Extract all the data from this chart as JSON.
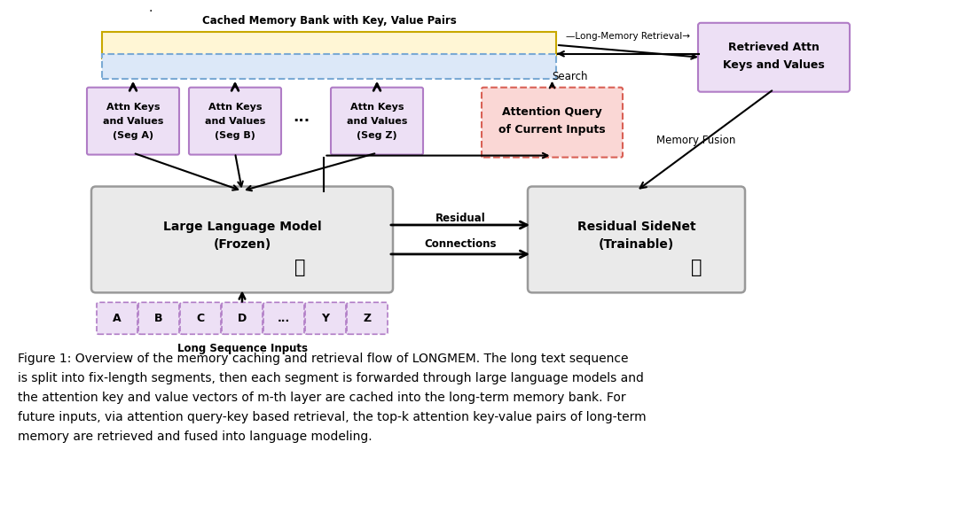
{
  "fig_width": 10.88,
  "fig_height": 5.78,
  "bg_color": "#ffffff",
  "mem_bank_label": "Cached Memory Bank with Key, Value Pairs",
  "attn_box_labels": [
    [
      "Attn Keys",
      "and Values",
      "(Seg A)"
    ],
    [
      "Attn Keys",
      "and Values",
      "(Seg B)"
    ],
    [
      "Attn Keys",
      "and Values",
      "(Seg Z)"
    ]
  ],
  "llm_label": [
    "Large Language Model",
    "(Frozen)"
  ],
  "sidenet_label": [
    "Residual SideNet",
    "(Trainable)"
  ],
  "retrieved_label": [
    "Retrieved Attn",
    "Keys and Values"
  ],
  "attn_query_label": [
    "Attention Query",
    "of Current Inputs"
  ],
  "seq_labels": [
    "A",
    "B",
    "C",
    "D",
    "...",
    "Y",
    "Z"
  ],
  "seq_label_text": "Long Sequence Inputs",
  "residual_label": [
    "Residual",
    "Connections"
  ],
  "search_label": "Search",
  "memory_fusion_label": "Memory Fusion",
  "retrieval_label": "—Long-Memory Retrieval→",
  "caption_lines": [
    "Figure 1: Overview of the memory caching and retrieval flow of LONGMEM. The long text sequence",
    "is split into fix-length segments, then each segment is forwarded through large language models and",
    "the attention key and value vectors of m-th layer are cached into the long-term memory bank. For",
    "future inputs, via attention query-key based retrieval, the top-k attention key-value pairs of long-term",
    "memory are retrieved and fused into language modeling."
  ],
  "yellow_fill": "#FFF6D5",
  "yellow_edge": "#C8A800",
  "blue_fill": "#DCE8F8",
  "blue_edge": "#7BAAD4",
  "purple_fill": "#EDE0F5",
  "purple_edge": "#B07CC6",
  "pink_fill": "#FAD7D5",
  "pink_edge": "#D96055",
  "gray_fill": "#EAEAEA",
  "gray_edge": "#999999",
  "light_purple_fill": "#EDE0F5",
  "light_purple_edge": "#B07CC6",
  "seq_fill": "#EDE0F5",
  "seq_edge": "#B07CC6"
}
